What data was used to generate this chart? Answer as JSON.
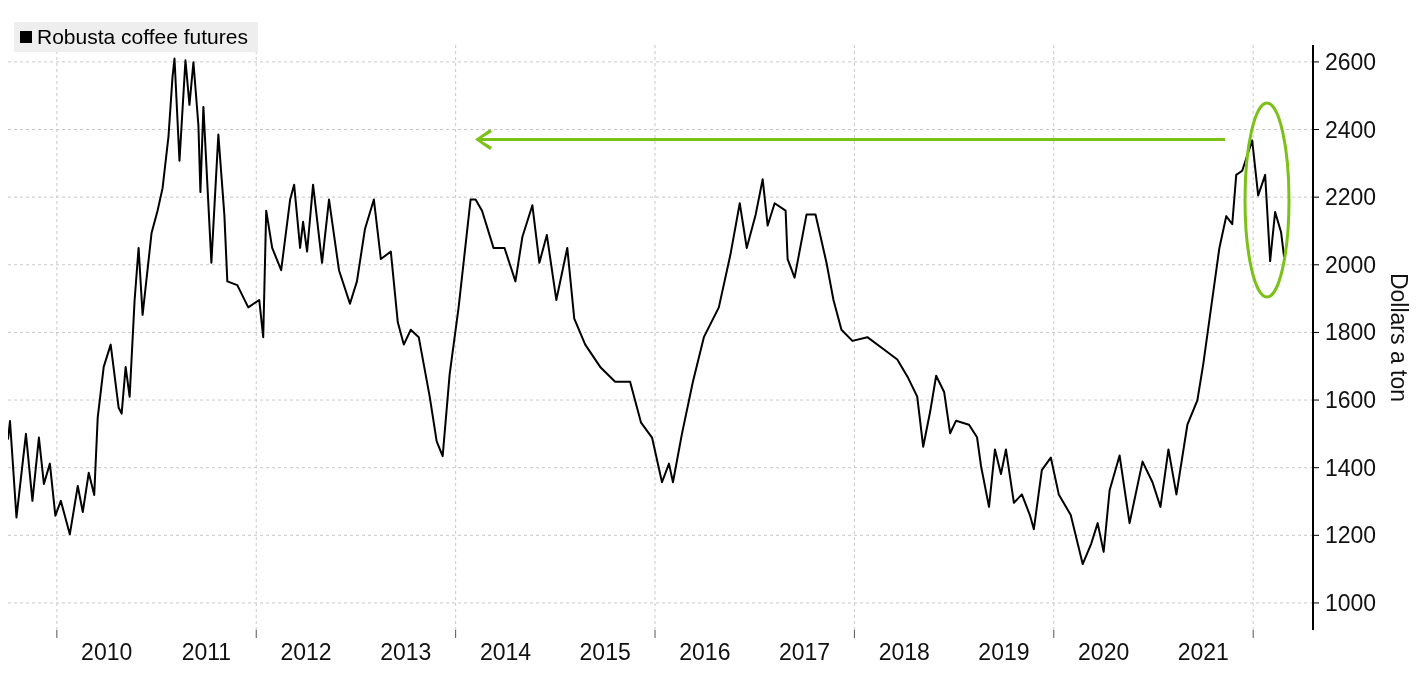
{
  "chart_data": {
    "type": "line",
    "ylabel": "Dollars a ton",
    "legend": "top left",
    "grid": true,
    "marker": "none",
    "line_style": "solid",
    "xlim": [
      2009.51,
      2022.6
    ],
    "ylim": [
      920,
      2650
    ],
    "xticks": [
      {
        "value": 2010,
        "label": null
      },
      {
        "value": 2010.5,
        "label": "2010"
      },
      {
        "value": 2011.5,
        "label": "2011"
      },
      {
        "value": 2012,
        "label": null
      },
      {
        "value": 2012.5,
        "label": "2012"
      },
      {
        "value": 2013.5,
        "label": "2013"
      },
      {
        "value": 2014,
        "label": null
      },
      {
        "value": 2014.5,
        "label": "2014"
      },
      {
        "value": 2015.5,
        "label": "2015"
      },
      {
        "value": 2016,
        "label": null
      },
      {
        "value": 2016.5,
        "label": "2016"
      },
      {
        "value": 2017.5,
        "label": "2017"
      },
      {
        "value": 2018,
        "label": null
      },
      {
        "value": 2018.5,
        "label": "2018"
      },
      {
        "value": 2019.5,
        "label": "2019"
      },
      {
        "value": 2020,
        "label": null
      },
      {
        "value": 2020.5,
        "label": "2020"
      },
      {
        "value": 2021.5,
        "label": "2021"
      },
      {
        "value": 2022,
        "label": null
      }
    ],
    "yticks": [
      1000,
      1200,
      1400,
      1600,
      1800,
      2000,
      2200,
      2400,
      2600
    ],
    "x": [
      2009.51,
      2009.53,
      2009.595,
      2009.69,
      2009.755,
      2009.82,
      2009.87,
      2009.93,
      2009.985,
      2010.04,
      2010.13,
      2010.21,
      2010.26,
      2010.32,
      2010.375,
      2010.41,
      2010.47,
      2010.54,
      2010.62,
      2010.65,
      2010.69,
      2010.73,
      2010.78,
      2010.82,
      2010.86,
      2010.95,
      2011.01,
      2011.06,
      2011.12,
      2011.16,
      2011.18,
      2011.23,
      2011.29,
      2011.33,
      2011.37,
      2011.42,
      2011.44,
      2011.47,
      2011.55,
      2011.62,
      2011.68,
      2011.71,
      2011.81,
      2011.92,
      2012.03,
      2012.07,
      2012.1,
      2012.16,
      2012.25,
      2012.34,
      2012.38,
      2012.44,
      2012.47,
      2012.51,
      2012.57,
      2012.66,
      2012.73,
      2012.83,
      2012.94,
      2013.01,
      2013.09,
      2013.18,
      2013.25,
      2013.35,
      2013.42,
      2013.48,
      2013.55,
      2013.63,
      2013.74,
      2013.81,
      2013.87,
      2013.94,
      2014.03,
      2014.15,
      2014.2,
      2014.265,
      2014.38,
      2014.49,
      2014.6,
      2014.67,
      2014.77,
      2014.84,
      2014.915,
      2015.01,
      2015.12,
      2015.19,
      2015.3,
      2015.45,
      2015.6,
      2015.75,
      2015.86,
      2015.97,
      2016.07,
      2016.14,
      2016.18,
      2016.27,
      2016.38,
      2016.49,
      2016.64,
      2016.755,
      2016.85,
      2016.92,
      2017.01,
      2017.08,
      2017.13,
      2017.2,
      2017.31,
      2017.33,
      2017.4,
      2017.52,
      2017.61,
      2017.72,
      2017.79,
      2017.87,
      2017.98,
      2018.13,
      2018.28,
      2018.43,
      2018.54,
      2018.63,
      2018.69,
      2018.76,
      2018.82,
      2018.9,
      2018.96,
      2019.02,
      2019.15,
      2019.23,
      2019.27,
      2019.35,
      2019.41,
      2019.47,
      2019.52,
      2019.6,
      2019.68,
      2019.76,
      2019.8,
      2019.88,
      2019.97,
      2020.05,
      2020.17,
      2020.29,
      2020.375,
      2020.44,
      2020.5,
      2020.56,
      2020.66,
      2020.76,
      2020.89,
      2020.99,
      2021.07,
      2021.15,
      2021.23,
      2021.34,
      2021.44,
      2021.5,
      2021.58,
      2021.66,
      2021.73,
      2021.79,
      2021.83,
      2021.89,
      2021.99,
      2022.05,
      2022.12,
      2022.17,
      2022.22,
      2022.28,
      2022.31
    ],
    "series": [
      {
        "name": "Robusta coffee futures",
        "color": "#000000",
        "values": [
          1483,
          1538,
          1253,
          1500,
          1302,
          1489,
          1352,
          1412,
          1258,
          1302,
          1203,
          1346,
          1269,
          1385,
          1319,
          1549,
          1698,
          1764,
          1577,
          1560,
          1698,
          1610,
          1896,
          2050,
          1852,
          2094,
          2160,
          2226,
          2380,
          2555,
          2610,
          2308,
          2605,
          2473,
          2599,
          2412,
          2215,
          2467,
          2006,
          2385,
          2149,
          1951,
          1940,
          1874,
          1896,
          1786,
          2160,
          2050,
          1984,
          2193,
          2237,
          2050,
          2127,
          2039,
          2237,
          2006,
          2193,
          1984,
          1885,
          1951,
          2105,
          2193,
          2017,
          2039,
          1830,
          1764,
          1808,
          1786,
          1610,
          1478,
          1434,
          1676,
          1874,
          2193,
          2193,
          2160,
          2050,
          2050,
          1951,
          2083,
          2176,
          2006,
          2088,
          1896,
          2050,
          1841,
          1764,
          1698,
          1654,
          1654,
          1533,
          1489,
          1357,
          1412,
          1357,
          1500,
          1654,
          1786,
          1874,
          2028,
          2182,
          2050,
          2149,
          2253,
          2116,
          2182,
          2160,
          2017,
          1962,
          2149,
          2149,
          2006,
          1896,
          1808,
          1775,
          1786,
          1753,
          1720,
          1665,
          1610,
          1462,
          1566,
          1672,
          1624,
          1502,
          1539,
          1527,
          1490,
          1405,
          1284,
          1454,
          1381,
          1454,
          1296,
          1321,
          1260,
          1218,
          1393,
          1430,
          1321,
          1260,
          1115,
          1175,
          1236,
          1151,
          1333,
          1436,
          1236,
          1418,
          1357,
          1284,
          1454,
          1321,
          1527,
          1599,
          1708,
          1878,
          2048,
          2144,
          2120,
          2266,
          2278,
          2368,
          2205,
          2266,
          2011,
          2156,
          2096,
          2023
        ]
      }
    ]
  }
}
